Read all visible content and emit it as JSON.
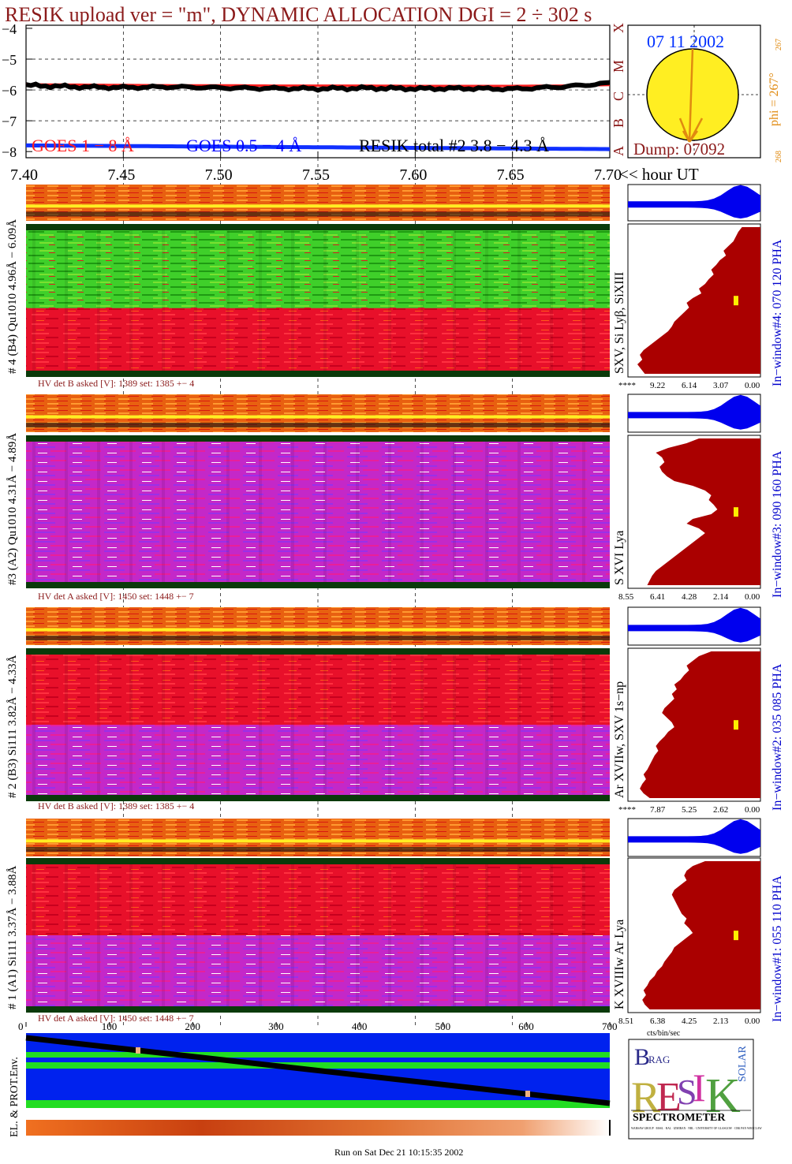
{
  "title": "RESIK upload ver = \"m\", DYNAMIC ALLOCATION  DGI =   2 ÷ 302 s",
  "colors": {
    "maroon": "#8b1a1a",
    "goes_red": "#ff2020",
    "goes_blue": "#0000ff",
    "pha_blue": "#0000ee",
    "pha_red": "#aa0000",
    "solar_disk": "#ffee22",
    "arrow": "#e08a10",
    "env_blue": "#0022ee",
    "env_green": "#22dd22"
  },
  "top_plot": {
    "y_ticks": [
      "−4",
      "−5",
      "−6",
      "−7",
      "−8"
    ],
    "x_ticks": [
      "7.40",
      "7.45",
      "7.50",
      "7.55",
      "7.60",
      "7.65",
      "7.70"
    ],
    "x_unit": "<< hour UT",
    "legend": {
      "goes1": "GOES 1 − 8 Å",
      "goes2": "GOES 0.5 − 4 Å",
      "resik": "RESIK total #2  3.8 − 4.3 Å"
    },
    "class_letters": [
      "X",
      "M",
      "C",
      "B",
      "A"
    ]
  },
  "sun_panel": {
    "date": "07 11 2002",
    "phi_label": "phi = 267°",
    "phi_value": "267",
    "bottom_value": "268",
    "dump": "Dump: 07092"
  },
  "channels": [
    {
      "left_label": "# 4 (B4) Qu1010 4.96Å − 6.09Å",
      "right_label": "SXV, Si Lyβ, SiXIII",
      "window_label": "In−window#4:  070 120 PHA",
      "hv_text": "HV det B asked [V]:  1389 set:  1385 +−    4",
      "pha_ticks": [
        "****",
        "9.22",
        "6.14",
        "3.07",
        "0.00"
      ],
      "profile": [
        0.15,
        0.18,
        0.2,
        0.22,
        0.26,
        0.3,
        0.28,
        0.33,
        0.36,
        0.4,
        0.38,
        0.42,
        0.45,
        0.5,
        0.48,
        0.55,
        0.6,
        0.58,
        0.62,
        0.66,
        0.7,
        0.72,
        0.75,
        0.8,
        0.85,
        0.9,
        0.95,
        0.98,
        0.96,
        1.0,
        0.97,
        0.94
      ]
    },
    {
      "left_label": "#3 (A2) Qu1010  4.31Å − 4.89Å",
      "right_label": "S XVI Lya",
      "window_label": "In−window#3:  090 160 PHA",
      "hv_text": "HV det A asked [V]:  1450 set:  1448 +−    7",
      "pha_ticks": [
        "8.55",
        "6.41",
        "4.28",
        "2.14",
        "0.00"
      ],
      "profile": [
        0.5,
        0.6,
        0.75,
        0.85,
        0.8,
        0.78,
        0.82,
        0.8,
        0.76,
        0.7,
        0.55,
        0.45,
        0.4,
        0.42,
        0.38,
        0.35,
        0.4,
        0.55,
        0.6,
        0.5,
        0.45,
        0.5,
        0.55,
        0.6,
        0.65,
        0.7,
        0.75,
        0.8,
        0.85,
        0.88,
        0.9,
        0.92
      ]
    },
    {
      "left_label": "# 2 (B3) Si111  3.82Å − 4.33Å",
      "right_label": "Ar XVIIw,  SXV 1s−np",
      "window_label": "In−window#2:  035 085 PHA",
      "hv_text": "HV det B asked [V]:  1389 set:  1385 +−    4",
      "pha_ticks": [
        "****",
        "7.87",
        "5.25",
        "2.62",
        "0.00"
      ],
      "profile": [
        0.4,
        0.5,
        0.55,
        0.6,
        0.58,
        0.62,
        0.65,
        0.7,
        0.68,
        0.72,
        0.7,
        0.74,
        0.78,
        0.8,
        0.76,
        0.72,
        0.7,
        0.75,
        0.78,
        0.82,
        0.85,
        0.83,
        0.86,
        0.88,
        0.9,
        0.92,
        0.95,
        0.93,
        0.96,
        0.98,
        0.95,
        0.9
      ]
    },
    {
      "left_label": "# 1 (A1) Si111  3.37Å − 3.88Å",
      "right_label": "K XVIIIw  Ar Lya",
      "window_label": "In−window#1:  055 110 PHA",
      "hv_text": "HV det A asked [V]:  1450 set:  1448 +−    7",
      "pha_ticks": [
        "8.51",
        "6.38",
        "4.25",
        "2.13",
        "0.00"
      ],
      "profile": [
        0.45,
        0.55,
        0.6,
        0.62,
        0.6,
        0.65,
        0.7,
        0.72,
        0.7,
        0.68,
        0.66,
        0.64,
        0.6,
        0.62,
        0.58,
        0.55,
        0.6,
        0.65,
        0.7,
        0.72,
        0.75,
        0.78,
        0.8,
        0.84,
        0.86,
        0.9,
        0.92,
        0.95,
        0.93,
        0.96,
        0.94,
        0.9
      ]
    }
  ],
  "bottom_axis": {
    "ticks": [
      "0",
      "100",
      "200",
      "300",
      "400",
      "500",
      "600",
      "700"
    ],
    "unit": "cts/bin/sec"
  },
  "env_label": "EL. & PROT.Env.",
  "logo": {
    "letters": [
      "B",
      "RAG",
      "R",
      "E",
      "S",
      "I",
      "K",
      "SOLAR"
    ],
    "text": "SPECTROMETER",
    "fine_print": "WARSAW GROUP · MSSL · RAL · IZMIRAN · NRL · UNIVERSITY OF GLASGOW · CBK PAN WROCLAW"
  },
  "footer": "Run on Sat Dec 21 10:15:35 2002",
  "chart_data": [
    {
      "type": "line",
      "title": "RESIK upload ver = \"m\", DYNAMIC ALLOCATION  DGI =   2 ÷ 302 s",
      "xlabel": "<< hour UT",
      "ylabel": "",
      "xlim": [
        7.4,
        7.7
      ],
      "ylim": [
        -8.2,
        -3.9
      ],
      "x": [
        7.4,
        7.425,
        7.45,
        7.475,
        7.5,
        7.525,
        7.55,
        7.575,
        7.6,
        7.625,
        7.65,
        7.675,
        7.7
      ],
      "series": [
        {
          "name": "GOES 1 − 8 Å",
          "values": [
            -5.82,
            -5.83,
            -5.84,
            -5.85,
            -5.85,
            -5.86,
            -5.86,
            -5.86,
            -5.87,
            -5.87,
            -5.87,
            -5.86,
            -5.84
          ]
        },
        {
          "name": "GOES 0.5 − 4 Å",
          "values": [
            -7.8,
            -7.81,
            -7.82,
            -7.83,
            -7.84,
            -7.85,
            -7.86,
            -7.87,
            -7.88,
            -7.89,
            -7.9,
            -7.91,
            -7.92
          ]
        },
        {
          "name": "RESIK total #2  3.8 − 4.3 Å",
          "values": [
            -5.85,
            -5.9,
            -5.92,
            -5.9,
            -5.93,
            -5.95,
            -5.96,
            -5.94,
            -5.96,
            -5.95,
            -5.97,
            -5.9,
            -5.78
          ]
        }
      ]
    },
    {
      "type": "heatmap",
      "title": "",
      "note": "four spectrometer channel dynamic spectra over 7.40 − 7.70 UT"
    }
  ]
}
